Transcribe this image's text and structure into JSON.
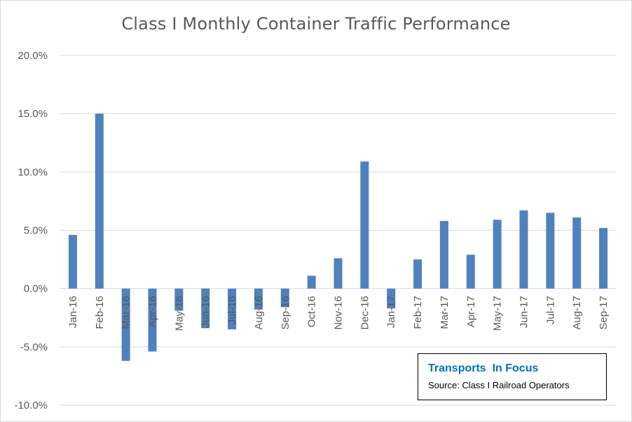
{
  "chart_data": {
    "type": "bar",
    "title": "Class I Monthly Container Traffic Performance",
    "xlabel": "",
    "ylabel": "",
    "categories": [
      "Jan-16",
      "Feb-16",
      "Mar-16",
      "Apr-16",
      "May-16",
      "Jun-16",
      "Jul-16",
      "Aug-16",
      "Sep-16",
      "Oct-16",
      "Nov-16",
      "Dec-16",
      "Jan-17",
      "Feb-17",
      "Mar-17",
      "Apr-17",
      "May-17",
      "Jun-17",
      "Jul-17",
      "Aug-17",
      "Sep-17"
    ],
    "values": [
      4.6,
      15.0,
      -6.2,
      -5.4,
      -1.9,
      -3.4,
      -3.5,
      -1.8,
      -1.6,
      1.1,
      2.6,
      10.9,
      -1.7,
      2.5,
      5.8,
      2.9,
      5.9,
      6.7,
      6.5,
      6.1,
      5.2
    ],
    "ylim": [
      -10,
      20
    ],
    "yticks": [
      -10,
      -5,
      0,
      5,
      10,
      15,
      20
    ],
    "ytick_labels": [
      "-10.0%",
      "-5.0%",
      "0.0%",
      "5.0%",
      "10.0%",
      "15.0%",
      "20.0%"
    ],
    "grid": true,
    "legend": false,
    "bar_color": "#4f81bd",
    "grid_color": "#d9d9d9"
  },
  "annotation": {
    "brand": "Transports  In Focus",
    "source": "Source: Class I Railroad Operators"
  }
}
